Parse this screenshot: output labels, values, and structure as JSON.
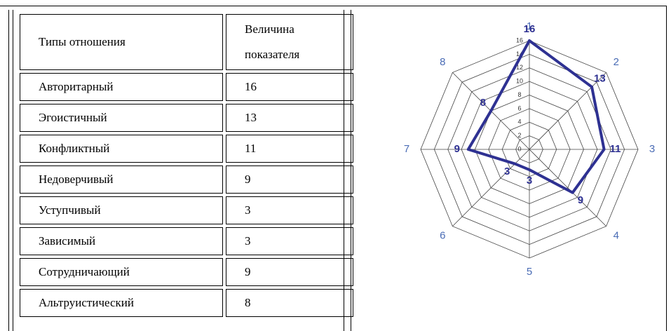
{
  "table": {
    "header": [
      "Типы отношения",
      "Величина показателя"
    ],
    "rows": [
      [
        "Авторитарный",
        "16"
      ],
      [
        "Эгоистичный",
        "13"
      ],
      [
        "Конфликтный",
        "11"
      ],
      [
        "Недоверчивый",
        "9"
      ],
      [
        "Уступчивый",
        "3"
      ],
      [
        "Зависимый",
        "3"
      ],
      [
        "Сотрудничающий",
        "9"
      ],
      [
        "Альтруистический",
        "8"
      ]
    ]
  },
  "chart_data": {
    "type": "radar",
    "categories": [
      "1",
      "2",
      "3",
      "4",
      "5",
      "6",
      "7",
      "8"
    ],
    "series": [
      {
        "color": "#2e3192",
        "values": [
          16,
          13,
          11,
          9,
          3,
          3,
          9,
          8
        ]
      }
    ],
    "rlim": [
      0,
      16
    ],
    "rticks": [
      0,
      2,
      4,
      6,
      8,
      10,
      12,
      14,
      16
    ],
    "grid": true
  }
}
